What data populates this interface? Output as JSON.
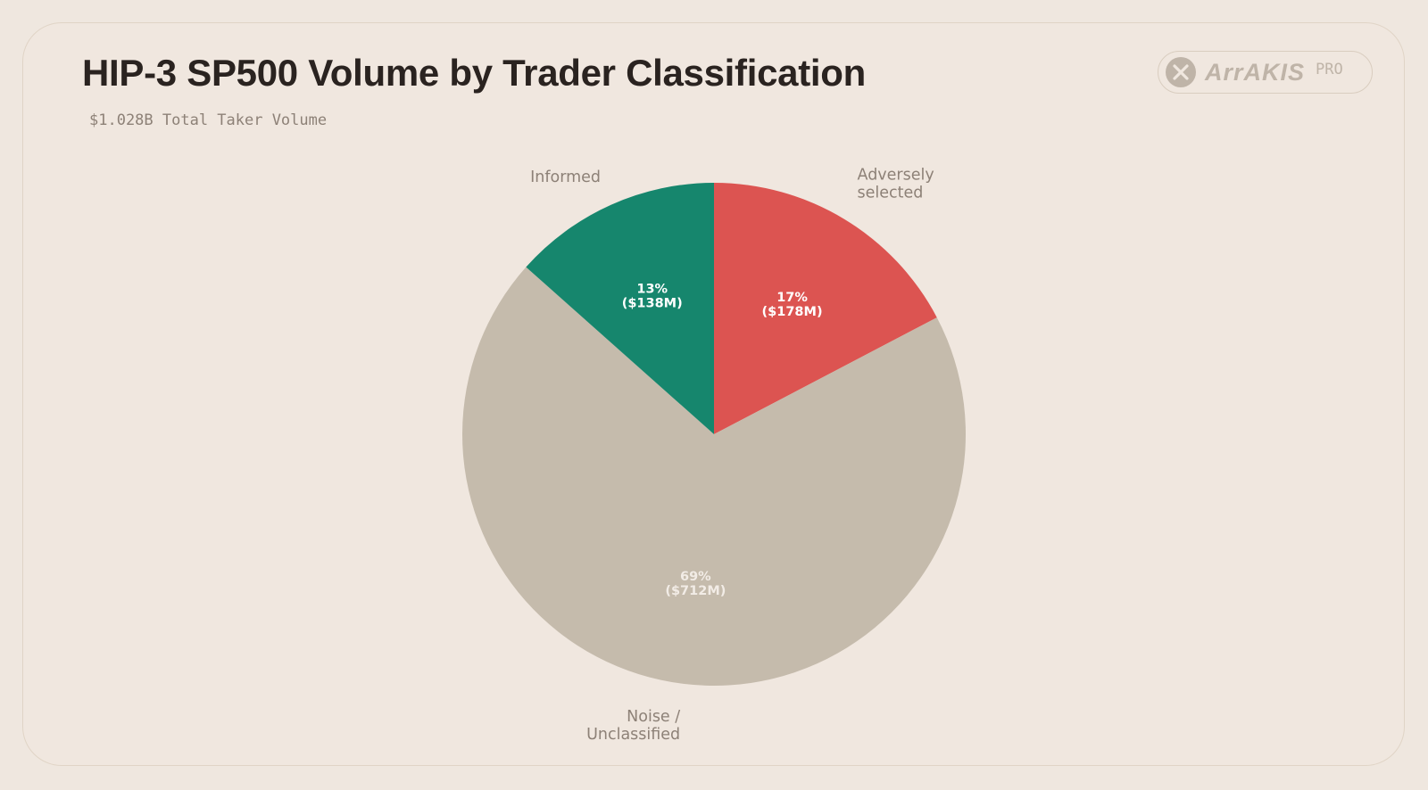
{
  "title": "HIP-3 SP500 Volume by Trader Classification",
  "subtitle": "$1.028B Total Taker Volume",
  "logo": {
    "word": "ArrAKIS",
    "suffix": "PRO",
    "icon": "arrakis-x-icon"
  },
  "colors": {
    "background": "#efe7df",
    "informed": "#16866d",
    "adverse": "#dc5451",
    "noise": "#c5bbac"
  },
  "chart_data": {
    "type": "pie",
    "title": "HIP-3 SP500 Volume by Trader Classification",
    "subtitle": "$1.028B Total Taker Volume",
    "total": "$1.028B",
    "slices": [
      {
        "label": "Adversely selected",
        "label_lines": [
          "Adversely",
          "selected"
        ],
        "percent": 17,
        "value_label": "($178M)",
        "value_musd": 178,
        "color": "#dc5451"
      },
      {
        "label": "Noise / Unclassified",
        "label_lines": [
          "Noise /",
          "Unclassified"
        ],
        "percent": 69,
        "value_label": "($712M)",
        "value_musd": 712,
        "color": "#c5bbac"
      },
      {
        "label": "Informed",
        "label_lines": [
          "Informed"
        ],
        "percent": 13,
        "value_label": "($138M)",
        "value_musd": 138,
        "color": "#16866d"
      }
    ]
  }
}
